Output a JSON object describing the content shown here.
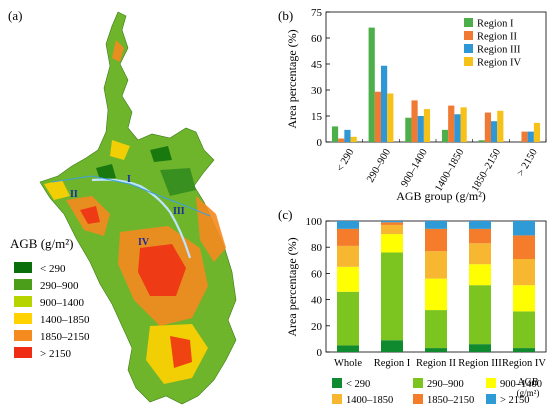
{
  "panels": {
    "a": {
      "label": "(a)",
      "region_labels": [
        "I",
        "II",
        "III",
        "IV"
      ]
    },
    "b": {
      "label": "(b)"
    },
    "c": {
      "label": "(c)"
    }
  },
  "map_legend": {
    "title": "AGB (g/m²)",
    "classes": [
      "< 290",
      "290–900",
      "900–1400",
      "1400–1850",
      "1850–2150",
      "> 2150"
    ]
  },
  "colors": {
    "class_colors": [
      "#0a6e0a",
      "#4a9e1a",
      "#b5d400",
      "#ffd200",
      "#f58a1f",
      "#ef2c14"
    ],
    "bar_region_colors": [
      "#4daf4a",
      "#f07a34",
      "#2f97d5",
      "#f6c21a"
    ],
    "stack_colors": [
      "#0f8a2e",
      "#7cc41f",
      "#ffff00",
      "#f7b731",
      "#f47c2a",
      "#2e9bd6"
    ]
  },
  "chart_data": [
    {
      "type": "bar",
      "panel": "(b)",
      "categories": [
        "< 290",
        "290–900",
        "900–1400",
        "1400–1850",
        "1850–2150",
        "> 2150"
      ],
      "series": [
        {
          "name": "Region I",
          "values": [
            9,
            66,
            14,
            7,
            1,
            0
          ]
        },
        {
          "name": "Region II",
          "values": [
            2,
            29,
            24,
            21,
            17,
            6
          ]
        },
        {
          "name": "Region III",
          "values": [
            7,
            44,
            15,
            16,
            12,
            6
          ]
        },
        {
          "name": "Region IV",
          "values": [
            3,
            28,
            19,
            20,
            18,
            11
          ]
        }
      ],
      "xlabel": "AGB group (g/m²)",
      "ylabel": "Area percentage (%)",
      "ylim": [
        0,
        75
      ],
      "yticks": [
        "0",
        "15",
        "30",
        "45",
        "60",
        "75"
      ],
      "legend": "top-right",
      "grid": false
    },
    {
      "type": "bar",
      "stacked": true,
      "panel": "(c)",
      "categories": [
        "Whole",
        "Region I",
        "Region II",
        "Region III",
        "Region IV"
      ],
      "series": [
        {
          "name": "< 290",
          "values": [
            5,
            9,
            3,
            6,
            3
          ]
        },
        {
          "name": "290–900",
          "values": [
            41,
            67,
            29,
            45,
            28
          ]
        },
        {
          "name": "900–1400",
          "values": [
            19,
            14,
            24,
            16,
            20
          ]
        },
        {
          "name": "1400–1850",
          "values": [
            16,
            7,
            21,
            16,
            20
          ]
        },
        {
          "name": "1850–2150",
          "values": [
            13,
            2,
            17,
            11,
            18
          ]
        },
        {
          "name": "> 2150",
          "values": [
            6,
            1,
            6,
            6,
            11
          ]
        }
      ],
      "ylabel": "Area percentage (%)",
      "ylim": [
        0,
        100
      ],
      "yticks": [
        "0",
        "20",
        "40",
        "60",
        "80",
        "100"
      ],
      "legend_title": [
        "AGB",
        "(g/m²)"
      ],
      "legend": "bottom",
      "grid": false
    }
  ]
}
